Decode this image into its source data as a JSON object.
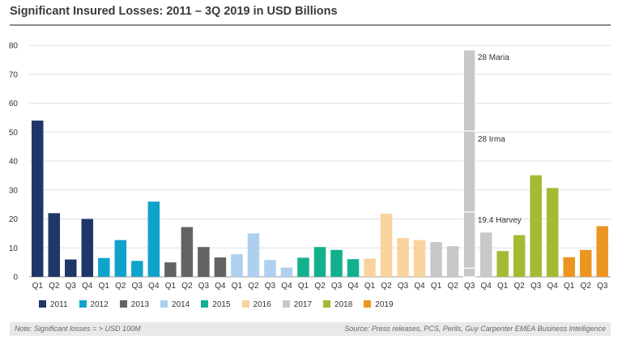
{
  "title": "Significant Insured Losses: 2011 – 3Q 2019 in USD Billions",
  "footer": {
    "note": "Note: Significant losses = > USD 100M",
    "source": "Source:  Press releases, PCS, Perils, Guy Carpenter EMEA Business Intelligence"
  },
  "chart_data": {
    "type": "bar",
    "ylim": [
      0,
      80
    ],
    "yticks": [
      0,
      10,
      20,
      30,
      40,
      50,
      60,
      70,
      80
    ],
    "grid": true,
    "legend_position": "bottom",
    "years": [
      {
        "year": "2011",
        "color": "#1f3668"
      },
      {
        "year": "2012",
        "color": "#0fa3cc"
      },
      {
        "year": "2013",
        "color": "#636363"
      },
      {
        "year": "2014",
        "color": "#aed0ee"
      },
      {
        "year": "2015",
        "color": "#13b08d"
      },
      {
        "year": "2016",
        "color": "#f8d49c"
      },
      {
        "year": "2017",
        "color": "#c8c8c8"
      },
      {
        "year": "2018",
        "color": "#a5b933"
      },
      {
        "year": "2019",
        "color": "#ec9621"
      }
    ],
    "bars": [
      {
        "label": "Q1",
        "year": "2011",
        "value": 54
      },
      {
        "label": "Q2",
        "year": "2011",
        "value": 22
      },
      {
        "label": "Q3",
        "year": "2011",
        "value": 6
      },
      {
        "label": "Q4",
        "year": "2011",
        "value": 20
      },
      {
        "label": "Q1",
        "year": "2012",
        "value": 6.5
      },
      {
        "label": "Q2",
        "year": "2012",
        "value": 12.7
      },
      {
        "label": "Q3",
        "year": "2012",
        "value": 5.5
      },
      {
        "label": "Q4",
        "year": "2012",
        "value": 26
      },
      {
        "label": "Q1",
        "year": "2013",
        "value": 5
      },
      {
        "label": "Q2",
        "year": "2013",
        "value": 17.2
      },
      {
        "label": "Q3",
        "year": "2013",
        "value": 10.3
      },
      {
        "label": "Q4",
        "year": "2013",
        "value": 6.7
      },
      {
        "label": "Q1",
        "year": "2014",
        "value": 7.8
      },
      {
        "label": "Q2",
        "year": "2014",
        "value": 15
      },
      {
        "label": "Q3",
        "year": "2014",
        "value": 5.8
      },
      {
        "label": "Q4",
        "year": "2014",
        "value": 3.2
      },
      {
        "label": "Q1",
        "year": "2015",
        "value": 6.6
      },
      {
        "label": "Q2",
        "year": "2015",
        "value": 10.3
      },
      {
        "label": "Q3",
        "year": "2015",
        "value": 9.3
      },
      {
        "label": "Q4",
        "year": "2015",
        "value": 6.1
      },
      {
        "label": "Q1",
        "year": "2016",
        "value": 6.3
      },
      {
        "label": "Q2",
        "year": "2016",
        "value": 21.8
      },
      {
        "label": "Q3",
        "year": "2016",
        "value": 13.4
      },
      {
        "label": "Q4",
        "year": "2016",
        "value": 12.7
      },
      {
        "label": "Q1",
        "year": "2017",
        "value": 12
      },
      {
        "label": "Q2",
        "year": "2017",
        "value": 10.6
      },
      {
        "label": "Q3",
        "year": "2017",
        "value": 78.4,
        "segments": [
          3,
          19.4,
          28,
          28
        ]
      },
      {
        "label": "Q4",
        "year": "2017",
        "value": 15.3
      },
      {
        "label": "Q1",
        "year": "2018",
        "value": 8.9
      },
      {
        "label": "Q2",
        "year": "2018",
        "value": 14.4
      },
      {
        "label": "Q3",
        "year": "2018",
        "value": 35.1
      },
      {
        "label": "Q4",
        "year": "2018",
        "value": 30.7
      },
      {
        "label": "Q1",
        "year": "2019",
        "value": 6.8
      },
      {
        "label": "Q2",
        "year": "2019",
        "value": 9.3
      },
      {
        "label": "Q3",
        "year": "2019",
        "value": 17.5
      }
    ],
    "annotations": [
      {
        "text": "28 Maria",
        "bar_index": 26,
        "y": 76
      },
      {
        "text": "28 Irma",
        "bar_index": 26,
        "y": 47.7
      },
      {
        "text": "19.4 Harvey",
        "bar_index": 26,
        "y": 19.7
      }
    ]
  }
}
